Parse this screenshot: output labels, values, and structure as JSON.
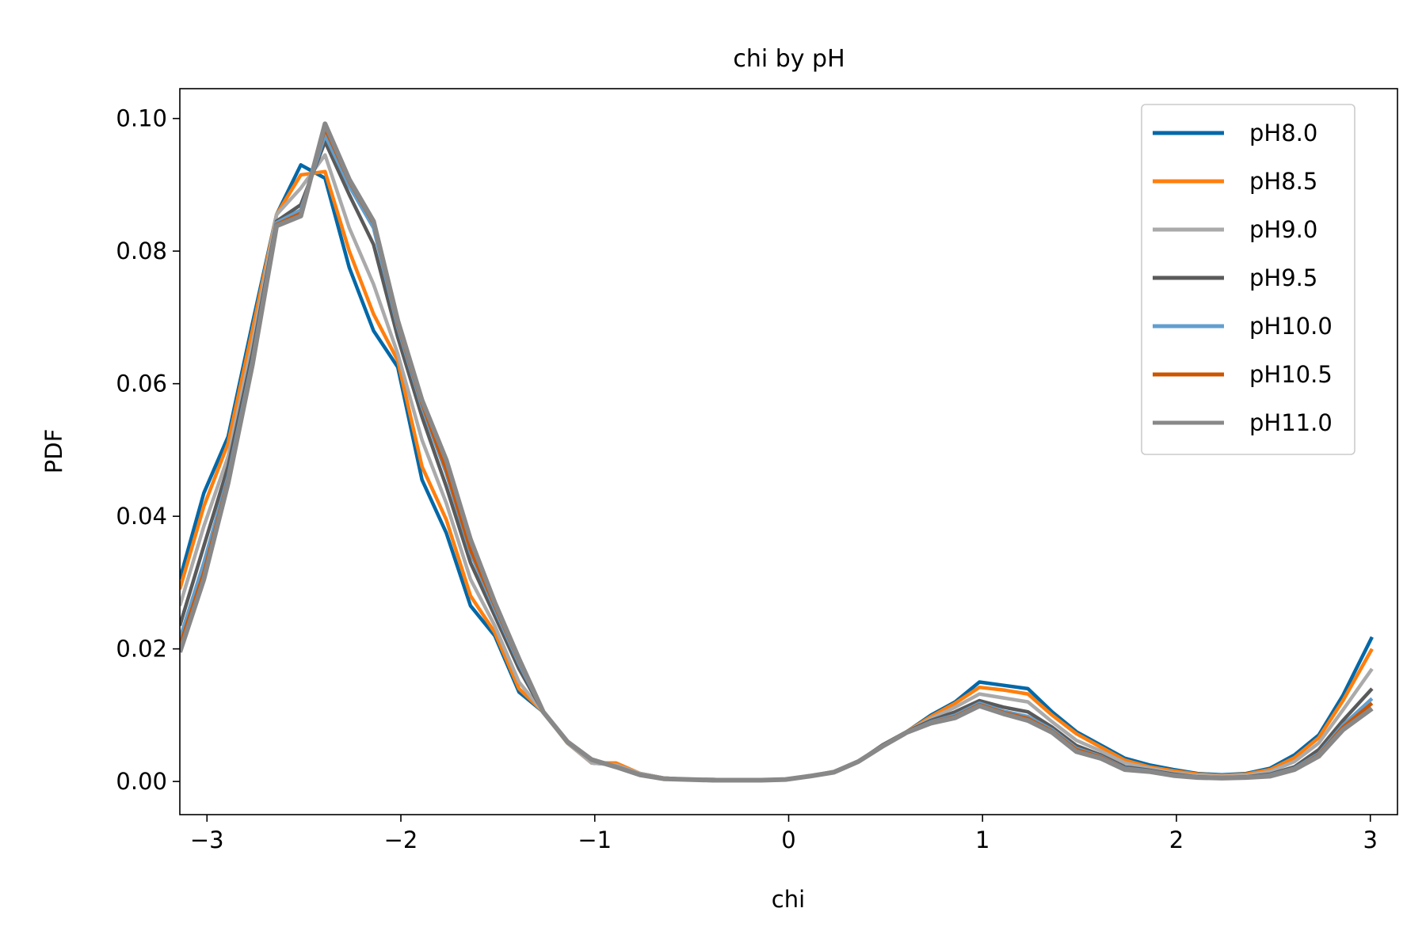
{
  "chart_data": {
    "type": "line",
    "title": "chi by pH",
    "xlabel": "chi",
    "ylabel": "PDF",
    "xlim": [
      -3.14,
      3.14
    ],
    "ylim": [
      -0.005,
      0.1045
    ],
    "xticks": [
      -3,
      -2,
      -1,
      0,
      1,
      2,
      3
    ],
    "xtick_labels": [
      "−3",
      "−2",
      "−1",
      "0",
      "1",
      "2",
      "3"
    ],
    "yticks": [
      0.0,
      0.02,
      0.04,
      0.06,
      0.08,
      0.1
    ],
    "ytick_labels": [
      "0.00",
      "0.02",
      "0.04",
      "0.06",
      "0.08",
      "0.10"
    ],
    "grid": false,
    "legend_position": "top-right",
    "x": [
      -3.14,
      -3.016,
      -2.891,
      -2.766,
      -2.641,
      -2.516,
      -2.391,
      -2.266,
      -2.141,
      -2.016,
      -1.891,
      -1.766,
      -1.641,
      -1.516,
      -1.391,
      -1.266,
      -1.141,
      -1.016,
      -0.891,
      -0.766,
      -0.641,
      -0.516,
      -0.391,
      -0.266,
      -0.141,
      -0.016,
      0.109,
      0.234,
      0.359,
      0.484,
      0.609,
      0.734,
      0.859,
      0.984,
      1.109,
      1.234,
      1.359,
      1.484,
      1.609,
      1.734,
      1.859,
      1.984,
      2.109,
      2.234,
      2.359,
      2.484,
      2.609,
      2.734,
      2.859,
      3.009
    ],
    "series": [
      {
        "name": "pH8.0",
        "color": "#0068a8",
        "values": [
          0.0305,
          0.0435,
          0.052,
          0.069,
          0.0855,
          0.093,
          0.091,
          0.0775,
          0.068,
          0.0625,
          0.0455,
          0.0375,
          0.0265,
          0.022,
          0.0135,
          0.0105,
          0.006,
          0.0028,
          0.0025,
          0.0012,
          0.0005,
          0.0003,
          0.0003,
          0.0002,
          0.0002,
          0.0003,
          0.0008,
          0.0015,
          0.003,
          0.0055,
          0.0075,
          0.01,
          0.012,
          0.015,
          0.0145,
          0.014,
          0.0105,
          0.0075,
          0.0055,
          0.0035,
          0.0025,
          0.0018,
          0.0012,
          0.001,
          0.0012,
          0.002,
          0.004,
          0.007,
          0.013,
          0.0218
        ]
      },
      {
        "name": "pH8.5",
        "color": "#ff7f0e",
        "values": [
          0.029,
          0.0415,
          0.051,
          0.068,
          0.0855,
          0.0915,
          0.092,
          0.08,
          0.0705,
          0.0635,
          0.0475,
          0.0395,
          0.028,
          0.0225,
          0.014,
          0.0105,
          0.0058,
          0.0028,
          0.0028,
          0.0012,
          0.0005,
          0.0003,
          0.0003,
          0.0002,
          0.0002,
          0.0003,
          0.0008,
          0.0015,
          0.003,
          0.0055,
          0.0075,
          0.0098,
          0.0118,
          0.0142,
          0.0138,
          0.0132,
          0.01,
          0.0072,
          0.0052,
          0.0032,
          0.0022,
          0.0016,
          0.0011,
          0.0009,
          0.0011,
          0.0018,
          0.0036,
          0.0066,
          0.0122,
          0.02
        ]
      },
      {
        "name": "pH9.0",
        "color": "#aaaaaa",
        "values": [
          0.0265,
          0.0385,
          0.049,
          0.066,
          0.0855,
          0.0895,
          0.0945,
          0.0835,
          0.075,
          0.0645,
          0.0515,
          0.042,
          0.0305,
          0.0235,
          0.015,
          0.0105,
          0.0058,
          0.0028,
          0.0025,
          0.0012,
          0.0005,
          0.0003,
          0.0003,
          0.0002,
          0.0002,
          0.0003,
          0.0008,
          0.0015,
          0.003,
          0.0055,
          0.0075,
          0.0095,
          0.0112,
          0.0132,
          0.0126,
          0.012,
          0.009,
          0.0062,
          0.0046,
          0.0028,
          0.002,
          0.0013,
          0.0009,
          0.0008,
          0.0009,
          0.0015,
          0.003,
          0.0058,
          0.0108,
          0.017
        ]
      },
      {
        "name": "pH9.5",
        "color": "#5a5a5a",
        "values": [
          0.0235,
          0.0355,
          0.0475,
          0.0645,
          0.0845,
          0.087,
          0.0965,
          0.0885,
          0.081,
          0.067,
          0.055,
          0.0445,
          0.033,
          0.025,
          0.017,
          0.0105,
          0.006,
          0.0033,
          0.0022,
          0.001,
          0.0004,
          0.0003,
          0.0002,
          0.0002,
          0.0002,
          0.0003,
          0.0008,
          0.0014,
          0.003,
          0.0055,
          0.0075,
          0.0092,
          0.0105,
          0.0122,
          0.0112,
          0.0105,
          0.0082,
          0.0054,
          0.004,
          0.0022,
          0.0017,
          0.0011,
          0.0007,
          0.0006,
          0.0007,
          0.0011,
          0.0022,
          0.0048,
          0.0092,
          0.014
        ]
      },
      {
        "name": "pH10.0",
        "color": "#629fcf",
        "values": [
          0.0215,
          0.033,
          0.046,
          0.0635,
          0.0843,
          0.0862,
          0.0975,
          0.0898,
          0.0835,
          0.0685,
          0.0565,
          0.0465,
          0.0345,
          0.026,
          0.0178,
          0.0105,
          0.006,
          0.0033,
          0.0022,
          0.001,
          0.0004,
          0.0003,
          0.0002,
          0.0002,
          0.0002,
          0.0003,
          0.0008,
          0.0014,
          0.003,
          0.0053,
          0.0074,
          0.009,
          0.01,
          0.0118,
          0.0106,
          0.0098,
          0.0078,
          0.005,
          0.0038,
          0.002,
          0.0016,
          0.001,
          0.0006,
          0.0005,
          0.0006,
          0.001,
          0.002,
          0.0042,
          0.0085,
          0.0125
        ]
      },
      {
        "name": "pH10.5",
        "color": "#cc5500",
        "values": [
          0.0205,
          0.0315,
          0.0455,
          0.063,
          0.084,
          0.0857,
          0.0985,
          0.0905,
          0.0842,
          0.069,
          0.057,
          0.047,
          0.035,
          0.0265,
          0.0182,
          0.0105,
          0.006,
          0.0033,
          0.0022,
          0.001,
          0.0004,
          0.0003,
          0.0002,
          0.0002,
          0.0002,
          0.0003,
          0.0008,
          0.0014,
          0.003,
          0.0053,
          0.0074,
          0.0089,
          0.0098,
          0.0116,
          0.0104,
          0.0095,
          0.0076,
          0.0048,
          0.0037,
          0.0019,
          0.0015,
          0.001,
          0.0006,
          0.0005,
          0.0006,
          0.0009,
          0.0019,
          0.004,
          0.0082,
          0.0118
        ]
      },
      {
        "name": "pH11.0",
        "color": "#888888",
        "values": [
          0.0195,
          0.0305,
          0.045,
          0.0628,
          0.0838,
          0.0853,
          0.0992,
          0.0908,
          0.0845,
          0.0695,
          0.0575,
          0.0485,
          0.0365,
          0.027,
          0.0185,
          0.0105,
          0.006,
          0.0033,
          0.0022,
          0.001,
          0.0004,
          0.0003,
          0.0002,
          0.0002,
          0.0002,
          0.0003,
          0.0008,
          0.0014,
          0.003,
          0.0053,
          0.0074,
          0.0088,
          0.0096,
          0.0114,
          0.0102,
          0.0092,
          0.0074,
          0.0045,
          0.0035,
          0.0018,
          0.0015,
          0.0009,
          0.0006,
          0.0005,
          0.0006,
          0.0008,
          0.0018,
          0.0038,
          0.0078,
          0.011
        ]
      }
    ]
  }
}
